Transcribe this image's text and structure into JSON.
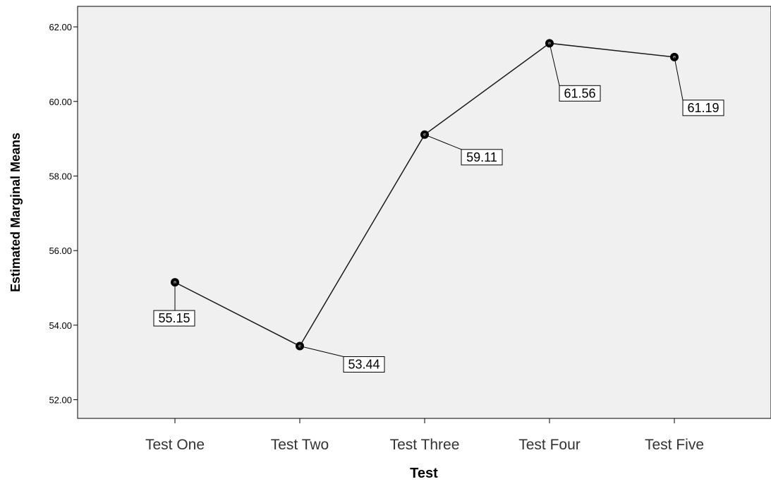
{
  "chart_data": {
    "type": "line",
    "title": "",
    "xlabel": "Test",
    "ylabel": "Estimated Marginal Means",
    "categories": [
      "Test One",
      "Test Two",
      "Test Three",
      "Test Four",
      "Test Five"
    ],
    "series": [
      {
        "values": [
          55.15,
          53.44,
          59.11,
          61.56,
          61.19
        ]
      }
    ],
    "data_labels": [
      "55.15",
      "53.44",
      "59.11",
      "61.56",
      "61.19"
    ],
    "y_ticks": [
      "52.00",
      "54.00",
      "56.00",
      "58.00",
      "60.00",
      "62.00"
    ],
    "ylim": [
      51.5,
      62.55
    ],
    "grid": false,
    "legend": "none",
    "colors": {
      "plot_background": "#f0f0f0",
      "line": "#1a1a1a",
      "marker": "#000000"
    }
  }
}
